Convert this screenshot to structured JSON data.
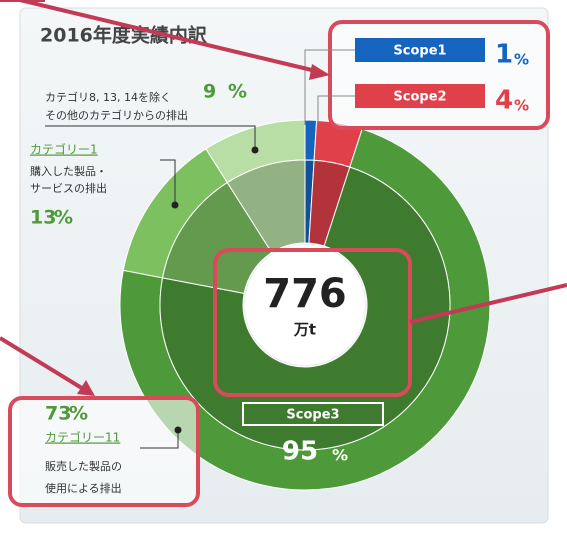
{
  "chart_data": {
    "type": "donut",
    "title": "2016年度実績内訳",
    "unit": "%",
    "segments": [
      {
        "name": "Scope1",
        "value": 1,
        "color": "#1565c0"
      },
      {
        "name": "Scope2",
        "value": 4,
        "color": "#e0404a"
      },
      {
        "name": "カテゴリー11",
        "description": [
          "販売した製品の",
          "使用による排出"
        ],
        "value": 73,
        "color": "#4e9a3a"
      },
      {
        "name": "カテゴリー1",
        "description": [
          "購入した製品・",
          "サービスの排出"
        ],
        "value": 13,
        "color": "#7cc060"
      },
      {
        "description": [
          "カテゴリ8, 13, 14を除く",
          "その他のカテゴリからの排出"
        ],
        "value": 9,
        "color": "#b8dea5"
      }
    ],
    "scope3": {
      "name": "Scope3",
      "value": 95
    },
    "total": {
      "value": 776,
      "unit": "万t"
    }
  }
}
